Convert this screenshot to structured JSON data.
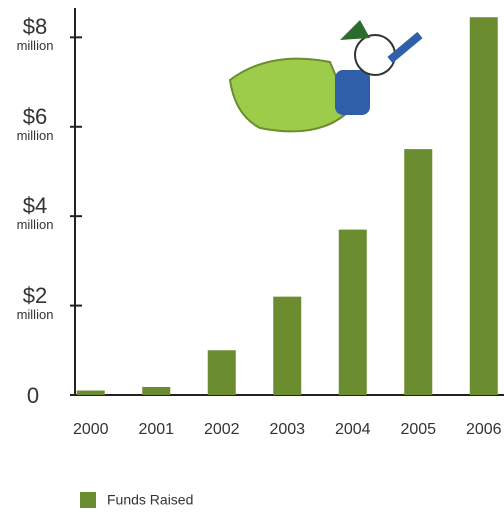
{
  "chart_data": {
    "type": "bar",
    "categories": [
      "2000",
      "2001",
      "2002",
      "2003",
      "2004",
      "2005",
      "2006"
    ],
    "series": [
      {
        "name": "Funds Raised",
        "color": "#6b8c2f",
        "values": [
          0.1,
          0.18,
          1.0,
          2.2,
          3.7,
          5.5,
          8.45
        ]
      }
    ],
    "ylim": [
      0,
      8.5
    ],
    "yticks": [
      0,
      {
        "value": 2,
        "label": "$2\nmillion"
      },
      {
        "value": 4,
        "label": "$4\nmillion"
      },
      {
        "value": 6,
        "label": "$6\nmillion"
      },
      {
        "value": 8,
        "label": "$8\nmillion"
      }
    ],
    "grid": false,
    "legend": "bottom"
  }
}
